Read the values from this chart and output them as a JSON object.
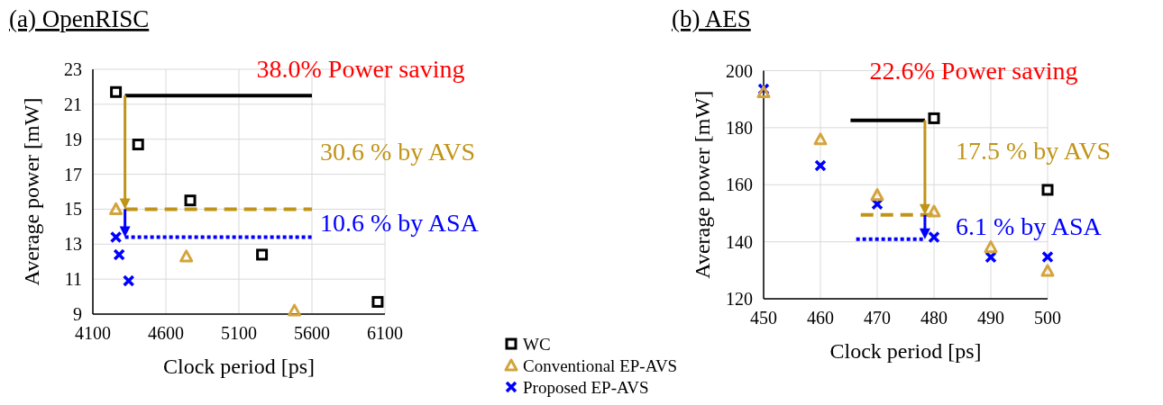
{
  "chart_data": [
    {
      "type": "scatter",
      "title": "(a) OpenRISC",
      "xlabel": "Clock period [ps]",
      "ylabel": "Average power [mW]",
      "xlim": [
        4100,
        6100
      ],
      "xticks": [
        4100,
        4600,
        5100,
        5600,
        6100
      ],
      "ylim": [
        9,
        23
      ],
      "yticks": [
        9,
        11,
        13,
        15,
        17,
        19,
        21,
        23
      ],
      "grid": true,
      "legend": "bottom right",
      "annotations": [
        "38.0% Power saving",
        "30.6 % by AVS",
        "10.6 % by ASA"
      ],
      "series": [
        {
          "name": "WC",
          "color": "#000000",
          "marker": "square",
          "x": [
            4258,
            4410,
            4767,
            5258,
            6050
          ],
          "values": [
            21.7,
            18.7,
            15.5,
            12.4,
            9.7
          ]
        },
        {
          "name": "Conventional EP-AVS",
          "color": "#d4a43c",
          "marker": "triangle",
          "x": [
            4258,
            4740,
            5480
          ],
          "values": [
            15.0,
            12.3,
            9.2
          ]
        },
        {
          "name": "Proposed EP-AVS",
          "color": "#0000ff",
          "marker": "cross",
          "x": [
            4258,
            4280,
            4345
          ],
          "values": [
            13.4,
            12.4,
            10.9
          ]
        },
        {
          "type": "line",
          "color": "#000000",
          "line_style": "solid",
          "x": [
            4320,
            5600
          ],
          "values": [
            21.5,
            21.5
          ]
        },
        {
          "type": "line",
          "color": "#c09418",
          "line_style": "dashed",
          "x": [
            4320,
            5600
          ],
          "values": [
            15.0,
            15.0
          ]
        },
        {
          "type": "line",
          "color": "#0000ff",
          "line_style": "dotted",
          "x": [
            4320,
            5600
          ],
          "values": [
            13.4,
            13.4
          ]
        }
      ]
    },
    {
      "type": "scatter",
      "title": "(b) AES",
      "xlabel": "Clock period [ps]",
      "ylabel": "Average power [mW]",
      "xlim": [
        450,
        500
      ],
      "xticks": [
        450,
        460,
        470,
        480,
        490,
        500
      ],
      "ylim": [
        120,
        200
      ],
      "yticks": [
        120,
        140,
        160,
        180,
        200
      ],
      "grid": true,
      "annotations": [
        "22.6% Power saving",
        {
          "text": "17.5 % by AVS",
          "x": 478.4,
          "y": 149.4
        },
        {
          "text": "6.1 % by ASA",
          "x": 478.4,
          "y": 140.9
        }
      ],
      "series": [
        {
          "color": "#000000",
          "marker": "square",
          "x": [
            480,
            500
          ],
          "values": [
            183.3,
            158.2
          ]
        },
        {
          "color": "#d4a43c",
          "marker": "triangle",
          "x": [
            450,
            460,
            470,
            480,
            490,
            500
          ],
          "values": [
            192.4,
            175.9,
            156.4,
            150.6,
            138.1,
            129.8
          ]
        },
        {
          "color": "#0000ff",
          "marker": "cross",
          "x": [
            450,
            460,
            470,
            480,
            490,
            500
          ],
          "values": [
            193.5,
            166.7,
            153.2,
            141.6,
            134.6,
            134.7
          ]
        },
        {
          "type": "line",
          "color": "#000000",
          "line_style": "solid",
          "x": [
            478.4,
            465.3
          ],
          "values": [
            182.6,
            182.6
          ]
        },
        {
          "type": "line",
          "color": "#c09418",
          "line_style": "dashed",
          "x": [
            467.1,
            480
          ],
          "values": [
            149.4,
            149.4
          ]
        },
        {
          "type": "line",
          "color": "#0000ff",
          "line_style": "dotted",
          "x": [
            466.3,
            478.4
          ],
          "values": [
            140.9,
            140.9
          ]
        }
      ]
    }
  ]
}
